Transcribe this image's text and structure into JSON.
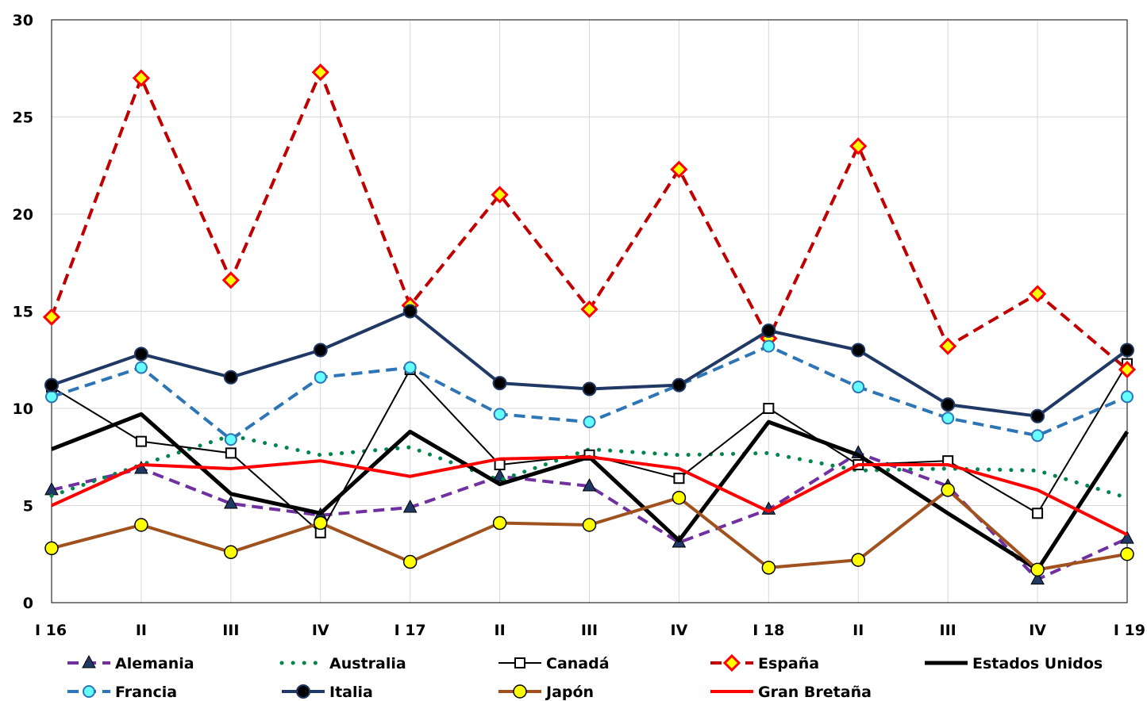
{
  "chart_data": {
    "type": "line",
    "categories": [
      "I 16",
      "II",
      "III",
      "IV",
      "I 17",
      "II",
      "III",
      "IV",
      "I 18",
      "II",
      "III",
      "IV",
      "I 19"
    ],
    "ylim": [
      0,
      30
    ],
    "yticks": [
      "0",
      "5",
      "10",
      "15",
      "20",
      "25",
      "30"
    ],
    "grid": true,
    "legend_position": "bottom",
    "series": [
      {
        "name": "Alemania",
        "color": "#7030a0",
        "style": "dashed",
        "marker": "triangle",
        "values": [
          5.8,
          6.9,
          5.1,
          4.5,
          4.9,
          6.5,
          6.0,
          3.1,
          4.8,
          7.7,
          6.0,
          1.2,
          3.3
        ]
      },
      {
        "name": "Australia",
        "color": "#00854a",
        "style": "dotted",
        "marker": "none",
        "values": [
          5.5,
          7.1,
          8.6,
          7.6,
          8.0,
          6.3,
          7.9,
          7.6,
          7.7,
          6.8,
          6.9,
          6.8,
          5.4
        ]
      },
      {
        "name": "Canadá",
        "color": "#000000",
        "style": "thin",
        "marker": "square",
        "values": [
          11.1,
          8.3,
          7.7,
          3.6,
          12.0,
          7.1,
          7.6,
          6.4,
          10.0,
          7.1,
          7.3,
          4.6,
          12.3
        ]
      },
      {
        "name": "España",
        "color": "#c00000",
        "style": "dashed",
        "marker": "diamond",
        "values": [
          14.7,
          27.0,
          16.6,
          27.3,
          15.3,
          21.0,
          15.1,
          22.3,
          13.6,
          23.5,
          13.2,
          15.9,
          12.0
        ]
      },
      {
        "name": "Estados Unidos",
        "color": "#000000",
        "style": "thick",
        "marker": "none",
        "values": [
          7.9,
          9.7,
          5.6,
          4.6,
          8.8,
          6.1,
          7.5,
          3.2,
          9.3,
          7.6,
          4.6,
          1.7,
          8.8
        ]
      },
      {
        "name": "Francia",
        "color": "#2e75b6",
        "style": "dashed",
        "marker": "circle-cyan",
        "values": [
          10.6,
          12.1,
          8.4,
          11.6,
          12.1,
          9.7,
          9.3,
          11.2,
          13.2,
          11.1,
          9.5,
          8.6,
          10.6
        ]
      },
      {
        "name": "Italia",
        "color": "#203864",
        "style": "solid",
        "marker": "circle-dark",
        "values": [
          11.2,
          12.8,
          11.6,
          13.0,
          15.0,
          11.3,
          11.0,
          11.2,
          14.0,
          13.0,
          10.2,
          9.6,
          13.0
        ]
      },
      {
        "name": "Japón",
        "color": "#a0521e",
        "style": "solid",
        "marker": "circle-yellow",
        "values": [
          2.8,
          4.0,
          2.6,
          4.1,
          2.1,
          4.1,
          4.0,
          5.4,
          1.8,
          2.2,
          5.8,
          1.7,
          2.5
        ]
      },
      {
        "name": "Gran Bretaña",
        "color": "#ff0000",
        "style": "solid",
        "marker": "none",
        "values": [
          5.0,
          7.1,
          6.9,
          7.3,
          6.5,
          7.4,
          7.5,
          6.9,
          4.7,
          7.1,
          7.1,
          5.8,
          3.5
        ]
      }
    ]
  }
}
